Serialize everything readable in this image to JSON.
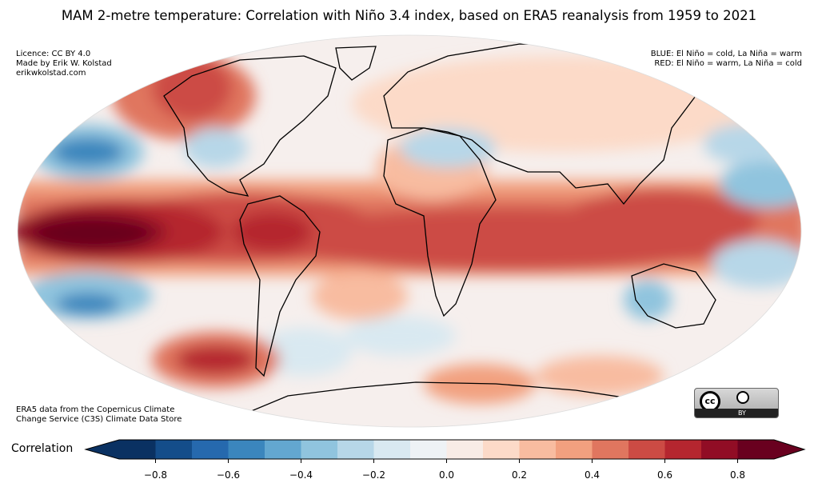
{
  "title": "MAM 2-metre temperature: Correlation with Niño 3.4 index, based on ERA5 reanalysis from 1959 to 2021",
  "left_notes": [
    "Licence: CC BY 4.0",
    "Made by Erik W. Kolstad",
    "erikwkolstad.com"
  ],
  "right_notes": [
    "BLUE: El Niño = cold, La Niña = warm",
    "RED: El Niño = warm, La Niña = cold"
  ],
  "source_notes": [
    "ERA5 data from the Copernicus Climate",
    "Change Service (C3S) Climate Data Store"
  ],
  "license_badge": {
    "logo_text": "cc",
    "label": "BY"
  },
  "colorbar": {
    "label": "Correlation",
    "min": -0.9,
    "max": 0.9,
    "step": 0.1,
    "ticks": [
      "−0.8",
      "−0.6",
      "−0.4",
      "−0.2",
      "0.0",
      "0.2",
      "0.4",
      "0.6",
      "0.8"
    ],
    "tick_values": [
      -0.8,
      -0.6,
      -0.4,
      -0.2,
      0.0,
      0.2,
      0.4,
      0.6,
      0.8
    ],
    "colors": [
      "#0a3162",
      "#144d8a",
      "#2669ae",
      "#3b86bd",
      "#63a7d0",
      "#90c4de",
      "#b7d7e8",
      "#d9e9f1",
      "#eef2f5",
      "#f8ece6",
      "#fcdac8",
      "#f8bca0",
      "#f2a07f",
      "#e0765f",
      "#cc4b44",
      "#b5262f",
      "#910d25",
      "#69001f"
    ]
  },
  "map": {
    "projection": "Mollweide",
    "ocean_background": "#f6efed"
  }
}
